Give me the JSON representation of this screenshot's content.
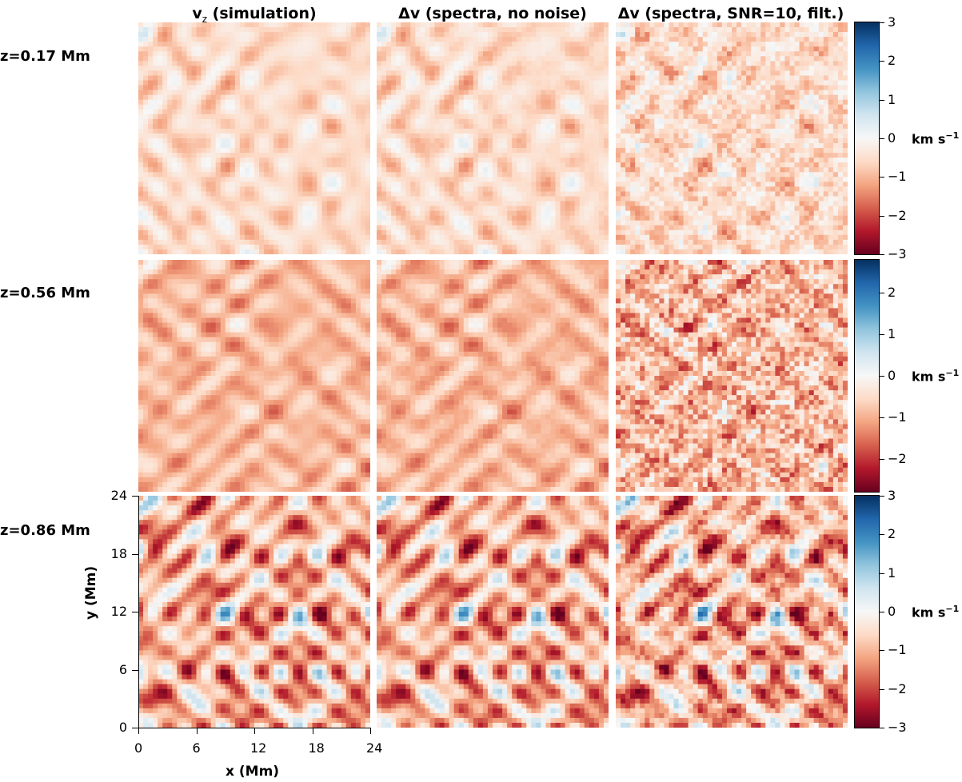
{
  "chart_data": {
    "type": "heatmap",
    "columns": [
      {
        "title_main": "v",
        "title_sub": "z",
        "title_rest": " (simulation)"
      },
      {
        "title_main": "Δv (spectra, no noise)",
        "title_sub": "",
        "title_rest": ""
      },
      {
        "title_main": "Δv (spectra, SNR=10, filt.)",
        "title_sub": "",
        "title_rest": ""
      }
    ],
    "rows": [
      {
        "label": "z=0.17 Mm",
        "mean": -0.55,
        "spread": 0.65,
        "colorbar_ticks": [
          "3",
          "2",
          "1",
          "0",
          "−1",
          "−2",
          "−3"
        ],
        "colorbar_range": [
          -3,
          3
        ]
      },
      {
        "label": "z=0.56 Mm",
        "mean": -0.9,
        "spread": 0.65,
        "colorbar_ticks": [
          "2",
          "1",
          "0",
          "−1",
          "−2"
        ],
        "colorbar_range": [
          -2.8,
          2.8
        ]
      },
      {
        "label": "z=0.86 Mm",
        "mean": -1.0,
        "spread": 1.6,
        "colorbar_ticks": [
          "3",
          "2",
          "1",
          "0",
          "−1",
          "−2",
          "−3"
        ],
        "colorbar_range": [
          -3,
          3
        ]
      }
    ],
    "colorbar_unit": "km s",
    "colorbar_unit_exp": "−1",
    "colormap": [
      "#67001f",
      "#b2182b",
      "#d6604d",
      "#f4a582",
      "#fddbc7",
      "#f7f7f7",
      "#d1e5f0",
      "#92c5de",
      "#4393c3",
      "#2166ac",
      "#053061"
    ],
    "xlabel": "x (Mm)",
    "ylabel": "y (Mm)",
    "xlim": [
      0,
      24
    ],
    "ylim": [
      0,
      24
    ],
    "x_ticks": [
      "0",
      "6",
      "12",
      "18",
      "24"
    ],
    "y_ticks": [
      "0",
      "6",
      "12",
      "18",
      "24"
    ]
  }
}
